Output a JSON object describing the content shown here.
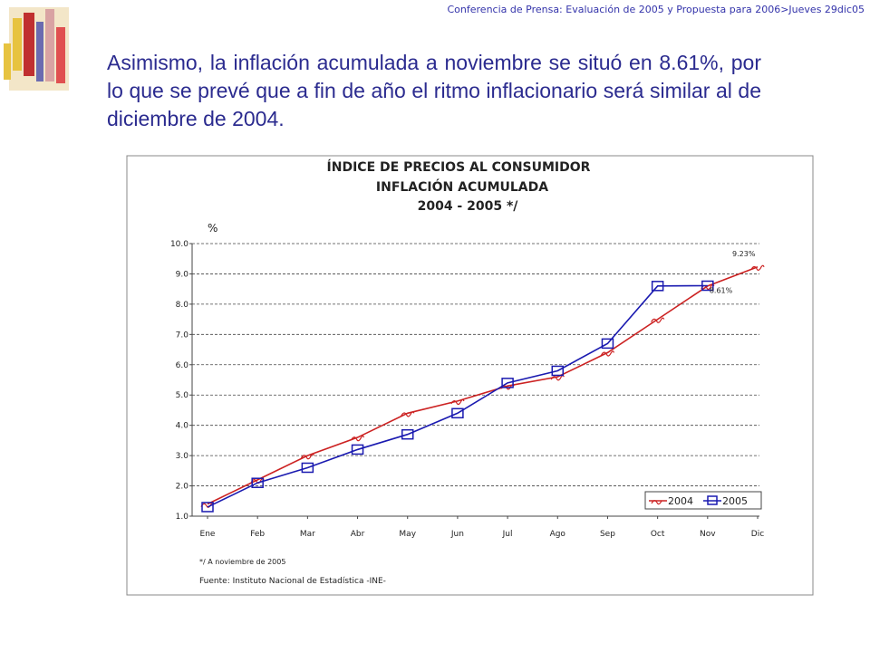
{
  "header": "Conferencia de Prensa: Evaluación de 2005 y Propuesta para 2006>Jueves 29dic05",
  "body_text": "Asimismo, la inflación acumulada a noviembre se situó en 8.61%, por lo que se prevé que a fin de año el ritmo inflacionario será similar al de diciembre de 2004.",
  "chart_data": {
    "type": "line",
    "title": [
      "ÍNDICE DE PRECIOS AL CONSUMIDOR",
      "INFLACIÓN ACUMULADA",
      "2004 - 2005  */"
    ],
    "y_label": "%",
    "categories": [
      "Ene",
      "Feb",
      "Mar",
      "Abr",
      "May",
      "Jun",
      "Jul",
      "Ago",
      "Sep",
      "Oct",
      "Nov",
      "Dic"
    ],
    "series": [
      {
        "name": "2004",
        "color": "#cc2222",
        "marker": "squiggle",
        "values": [
          1.4,
          2.2,
          3.0,
          3.6,
          4.4,
          4.8,
          5.3,
          5.6,
          6.4,
          7.5,
          8.6,
          9.23
        ],
        "value_labels": [
          null,
          null,
          null,
          null,
          null,
          null,
          null,
          null,
          null,
          null,
          null,
          "9.23%"
        ]
      },
      {
        "name": "2005",
        "color": "#1a1ab0",
        "marker": "square",
        "values": [
          1.3,
          2.1,
          2.6,
          3.2,
          3.7,
          4.4,
          5.4,
          5.8,
          6.7,
          8.6,
          8.61,
          null
        ],
        "value_labels": [
          null,
          null,
          null,
          null,
          null,
          null,
          null,
          null,
          null,
          null,
          "8.61%",
          null
        ]
      }
    ],
    "ylim": [
      1.0,
      10.0
    ],
    "yticks": [
      {
        "value": 1,
        "label": "1.0"
      },
      {
        "value": 2,
        "label": "2.0"
      },
      {
        "value": 3,
        "label": "3.0"
      },
      {
        "value": 4,
        "label": "4.0"
      },
      {
        "value": 5,
        "label": "5.0"
      },
      {
        "value": 6,
        "label": "6.0"
      },
      {
        "value": 7,
        "label": "7.0"
      },
      {
        "value": 8,
        "label": "8.0"
      },
      {
        "value": 9,
        "label": "9.0"
      },
      {
        "value": 10,
        "label": "10.0"
      }
    ],
    "grid": true,
    "legend": "bottom-right",
    "footnotes": [
      "*/ A noviembre de 2005",
      "Fuente: Instituto Nacional de Estadística -INE-"
    ]
  }
}
